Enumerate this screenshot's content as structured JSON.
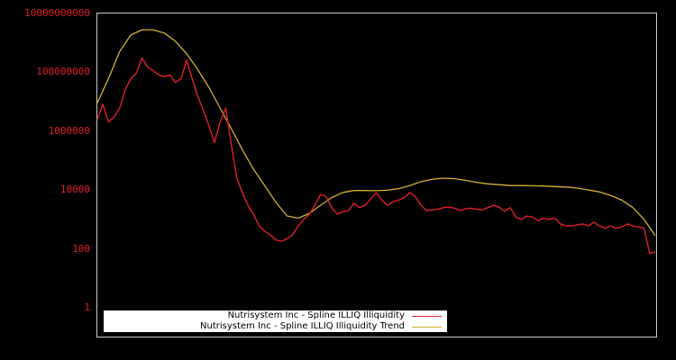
{
  "chart_data": {
    "type": "line",
    "title": "",
    "xlabel": "",
    "ylabel": "",
    "yscale": "log",
    "ylim": [
      0.1,
      10000000000
    ],
    "y_ticks": [
      {
        "label": "10000000000",
        "value": 10000000000
      },
      {
        "label": "100000000",
        "value": 100000000
      },
      {
        "label": "1000000",
        "value": 1000000
      },
      {
        "label": "10000",
        "value": 10000
      },
      {
        "label": "100",
        "value": 100
      },
      {
        "label": "1",
        "value": 1
      }
    ],
    "x_ticks": [],
    "grid": false,
    "legend_position": "bottom-left inside",
    "series": [
      {
        "name": "Nutrisystem Inc - Spline ILLIQ Illiquidity",
        "color": "#e0202a",
        "x": [
          0,
          1,
          2,
          3,
          4,
          5,
          6,
          7,
          8,
          9,
          10,
          11,
          12,
          13,
          14,
          15,
          16,
          17,
          18,
          19,
          20,
          21,
          22,
          23,
          24,
          25,
          26,
          27,
          28,
          29,
          30,
          31,
          32,
          33,
          34,
          35,
          36,
          37,
          38,
          39,
          40,
          41,
          42,
          43,
          44,
          45,
          46,
          47,
          48,
          49,
          50,
          51,
          52,
          53,
          54,
          55,
          56,
          57,
          58,
          59,
          60,
          61,
          62,
          63,
          64,
          65,
          66,
          67,
          68,
          69,
          70,
          71,
          72,
          73,
          74,
          75,
          76,
          77,
          78,
          79,
          80,
          81,
          82,
          83,
          84,
          85,
          86,
          87,
          88,
          89,
          90,
          91,
          92,
          93,
          94,
          95,
          96,
          97,
          98,
          99,
          100
        ],
        "values": [
          2500000,
          8000000,
          2000000,
          3000000,
          6000000,
          25000000,
          60000000,
          90000000,
          300000000,
          150000000,
          110000000,
          80000000,
          70000000,
          80000000,
          45000000,
          60000000,
          250000000,
          60000000,
          15000000,
          5000000,
          1500000,
          400000,
          2000000,
          6000000,
          350000,
          25000,
          8000,
          3000,
          1500,
          600,
          400,
          300,
          200,
          180,
          220,
          300,
          600,
          1000,
          1500,
          3000,
          7000,
          6000,
          2500,
          1500,
          1800,
          2000,
          3500,
          2500,
          3000,
          5000,
          8000,
          4500,
          3000,
          4000,
          4500,
          5500,
          8000,
          6000,
          3000,
          2000,
          2100,
          2200,
          2500,
          2600,
          2400,
          2000,
          2300,
          2400,
          2200,
          2100,
          2500,
          3000,
          2600,
          1900,
          2500,
          1200,
          1000,
          1300,
          1200,
          900,
          1100,
          1000,
          1100,
          700,
          600,
          600,
          650,
          700,
          600,
          800,
          600,
          500,
          600,
          500,
          550,
          700,
          600,
          550,
          500,
          70,
          80
        ]
      },
      {
        "name": "Nutrisystem Inc - Spline ILLIQ Illiquidity Trend",
        "color": "#d4b030",
        "x": [
          0,
          2,
          4,
          6,
          8,
          10,
          12,
          14,
          16,
          18,
          20,
          22,
          24,
          26,
          28,
          30,
          32,
          34,
          36,
          38,
          40,
          42,
          44,
          46,
          48,
          50,
          52,
          54,
          56,
          58,
          60,
          62,
          64,
          66,
          68,
          70,
          72,
          74,
          76,
          78,
          80,
          82,
          84,
          86,
          88,
          90,
          92,
          94,
          96,
          98,
          100
        ],
        "values": [
          9000000,
          60000000,
          500000000,
          1800000000,
          2700000000,
          2700000000,
          2100000000,
          1100000000,
          420000000,
          120000000,
          30000000,
          6000000,
          1200000,
          230000,
          50000,
          14000,
          3800,
          1300,
          1100,
          1600,
          3000,
          5500,
          8200,
          9500,
          9500,
          9400,
          9800,
          11000,
          14000,
          19000,
          23000,
          25000,
          24000,
          21000,
          18000,
          16000,
          15000,
          14000,
          14000,
          13800,
          13500,
          13000,
          12500,
          11500,
          10000,
          8500,
          6500,
          4500,
          2500,
          1000,
          280
        ]
      }
    ]
  },
  "legend": {
    "items": [
      {
        "label": "Nutrisystem Inc - Spline ILLIQ Illiquidity",
        "color": "#e0202a"
      },
      {
        "label": "Nutrisystem Inc - Spline ILLIQ Illiquidity Trend",
        "color": "#d4b030"
      }
    ]
  },
  "ticks": {
    "t0": "10000000000",
    "t1": "100000000",
    "t2": "1000000",
    "t3": "10000",
    "t4": "100",
    "t5": "1"
  }
}
